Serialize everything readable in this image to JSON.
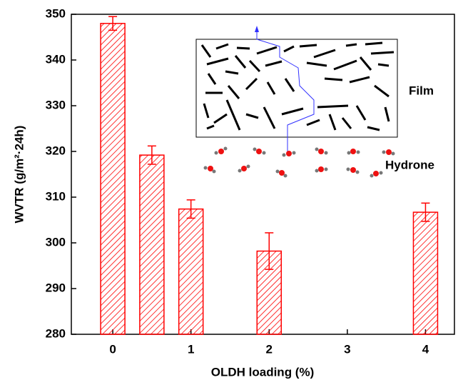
{
  "chart_data": {
    "type": "bar",
    "x": [
      0,
      0.5,
      1,
      2,
      4
    ],
    "values": [
      348,
      319.2,
      307.4,
      298.2,
      306.7
    ],
    "errors": [
      1.5,
      2,
      2,
      4,
      2
    ],
    "color": "#ff0000",
    "xlim": [
      -0.53,
      4.37
    ],
    "xticks": [
      0,
      1,
      2,
      3,
      4
    ],
    "ylim": [
      280,
      350
    ],
    "yticks": [
      280,
      290,
      300,
      310,
      320,
      330,
      340,
      350
    ],
    "xlabel": "OLDH loading (%)",
    "ylabel": "WVTR (g/m²·24h)",
    "annotations": [
      "Film",
      "Hydrone"
    ]
  }
}
